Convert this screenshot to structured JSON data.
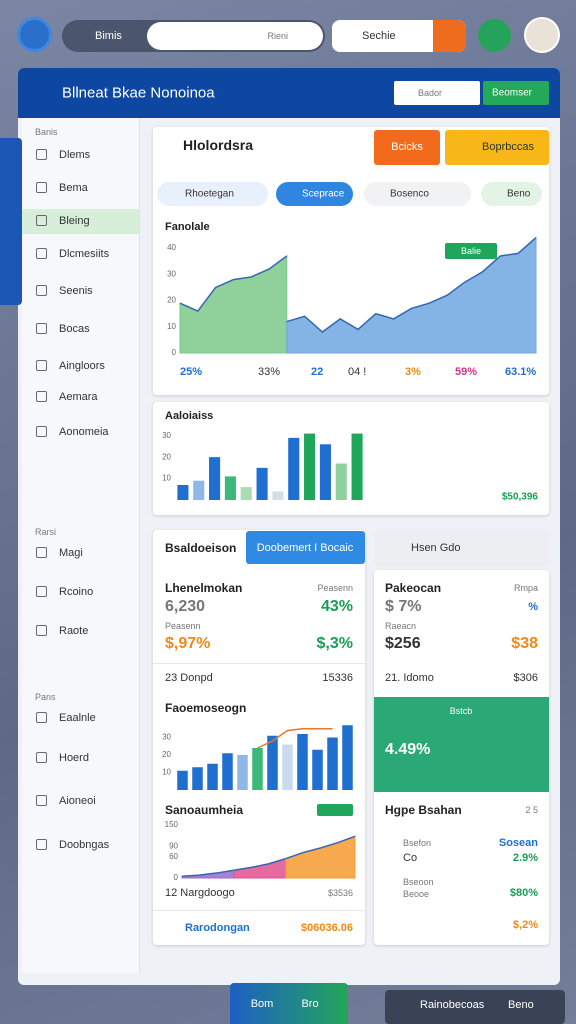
{
  "top_bar": {
    "search_label": "Bimis",
    "search_input": "Rieni",
    "search2": "Sechie"
  },
  "window": {
    "title": "Bllneat Bkae Nonoinoa",
    "search": "Bador",
    "button": "Beomser"
  },
  "sidebar": {
    "groups": [
      {
        "header": "Banis",
        "items": [
          "Dlems",
          "Bema",
          "Bleing",
          "Dlcmesiits",
          "Seenis",
          "Bocas",
          "Aingloors",
          "Aemara",
          "Aonomeia"
        ]
      },
      {
        "header": "Rarsi",
        "items": [
          "Magi",
          "Rcoino",
          "Raote"
        ]
      },
      {
        "header": "Pans",
        "items": [
          "Eaalnle",
          "Hoerd",
          "Aioneoi",
          "Doobngas"
        ]
      }
    ]
  },
  "overview": {
    "title": "Hlolordsra",
    "btn1": "Bcicks",
    "btn2": "Boprbccas",
    "tabs": [
      "Rhoetegan",
      "Sceprace",
      "Bosenco",
      "Beno"
    ],
    "chart_label": "Fanolale",
    "badge": "Balie",
    "stats": [
      "25%",
      "33%",
      "22",
      "04 !",
      "3%",
      "59%",
      "63.1%"
    ]
  },
  "activity": {
    "title": "Aaloiaiss",
    "total": "$50,396"
  },
  "summary": {
    "title": "Bsaldoeison",
    "tab": "Doobemert I Bocaic",
    "tab2": "Hsen Gdo",
    "left": {
      "name": "Lhenelmokan",
      "label1": "Peasenn",
      "value1": "6,230",
      "pct1": "43%",
      "label2": "Peasenn",
      "value2": "$,97%",
      "pct2": "$,3%",
      "row_label": "23 Donpd",
      "row_value": "15336",
      "chart1_title": "Faoemoseogn",
      "chart2_title": "Sanoaumheia",
      "row2_label": "12 Nargdoogo",
      "row2_value": "$3536",
      "footer_label": "Rarodongan",
      "footer_value": "$06036.06"
    },
    "right": {
      "name": "Pakeocan",
      "label1": "Rmpa",
      "value1": "$ 7%",
      "pct1": "%",
      "label2": "Raeacn",
      "value2": "$256",
      "pct2": "$38",
      "row_label": "21. Idomo",
      "row_value": "$306",
      "panel_label": "Bstcb",
      "panel_value": "4.49%",
      "section": "Hgpe Bsahan",
      "section_value": "2 5",
      "item1_a": "Bsefon",
      "item1_b": "Co",
      "item1_value_a": "Sosean",
      "item1_value_b": "2.9%",
      "item2_a": "Bseoon",
      "item2_b": "Beooe",
      "item2_value": "$80%",
      "footer_value": "$,2%"
    }
  },
  "bottom_bar": {
    "left1": "Bom",
    "left2": "Bro",
    "right1": "Rainobecoas",
    "right2": "Beno"
  },
  "chart_data": [
    {
      "type": "area",
      "ylim": [
        0,
        45
      ],
      "yticks": [
        0,
        10,
        20,
        30,
        40
      ],
      "xlim": [
        0,
        20
      ],
      "series": [
        {
          "color": "#7cc98a",
          "x": [
            0,
            1,
            2,
            3,
            4,
            5,
            6
          ],
          "values": [
            19,
            16,
            25,
            28,
            29,
            32,
            37
          ]
        },
        {
          "color": "#6fa7e0",
          "x": [
            6,
            7,
            8,
            9,
            10,
            11,
            12,
            13,
            14,
            15,
            16,
            17,
            18,
            19,
            20
          ],
          "values": [
            12,
            14,
            8,
            13,
            9,
            15,
            13,
            17,
            19,
            22,
            27,
            31,
            37,
            38,
            44
          ]
        }
      ]
    },
    {
      "type": "bar",
      "ylim": [
        0,
        35
      ],
      "yticks": [
        10,
        20,
        30
      ],
      "categories": [
        null,
        null,
        null,
        null,
        null,
        null,
        null,
        null,
        null,
        null,
        null,
        null
      ],
      "values": [
        7,
        9,
        20,
        11,
        6,
        15,
        4,
        29,
        31,
        26,
        17,
        31
      ],
      "colors": [
        "#1e6fd0",
        "#8fb8e8",
        "#1e6fd0",
        "#3cb878",
        "#a8dcb3",
        "#1e6fd0",
        "#d6dde6",
        "#1e6fd0",
        "#1ea65a",
        "#1e6fd0",
        "#8fd19e",
        "#1ea65a"
      ]
    },
    {
      "type": "bar",
      "ylim": [
        0,
        40
      ],
      "yticks": [
        10,
        20,
        30
      ],
      "categories": [
        null,
        null,
        null,
        null,
        null,
        null,
        null,
        null,
        null,
        null,
        null,
        null
      ],
      "values": [
        11,
        13,
        15,
        21,
        20,
        24,
        31,
        26,
        32,
        23,
        30,
        37
      ],
      "colors": [
        "#1e6fd0",
        "#1e6fd0",
        "#1e6fd0",
        "#1e6fd0",
        "#8fb8e8",
        "#3cb878",
        "#1e6fd0",
        "#c9dcef",
        "#1e6fd0",
        "#1e6fd0",
        "#1e6fd0",
        "#1e6fd0"
      ],
      "line": {
        "color": "#e8762c",
        "values": [
          null,
          null,
          null,
          null,
          null,
          24,
          28,
          34,
          35,
          35,
          35,
          null
        ]
      }
    },
    {
      "type": "area",
      "ylim": [
        0,
        150
      ],
      "yticks": [
        0,
        60,
        90,
        150
      ],
      "xlim": [
        0,
        10
      ],
      "series": [
        {
          "color": "#9b6bc9",
          "x": [
            0,
            1,
            2,
            3
          ],
          "values": [
            5,
            8,
            14,
            22
          ]
        },
        {
          "color": "#e0508f",
          "x": [
            3,
            4,
            5,
            6
          ],
          "values": [
            22,
            30,
            40,
            55
          ]
        },
        {
          "color": "#f59a2f",
          "x": [
            6,
            7,
            8,
            9,
            10
          ],
          "values": [
            55,
            72,
            85,
            100,
            118
          ]
        }
      ]
    }
  ]
}
